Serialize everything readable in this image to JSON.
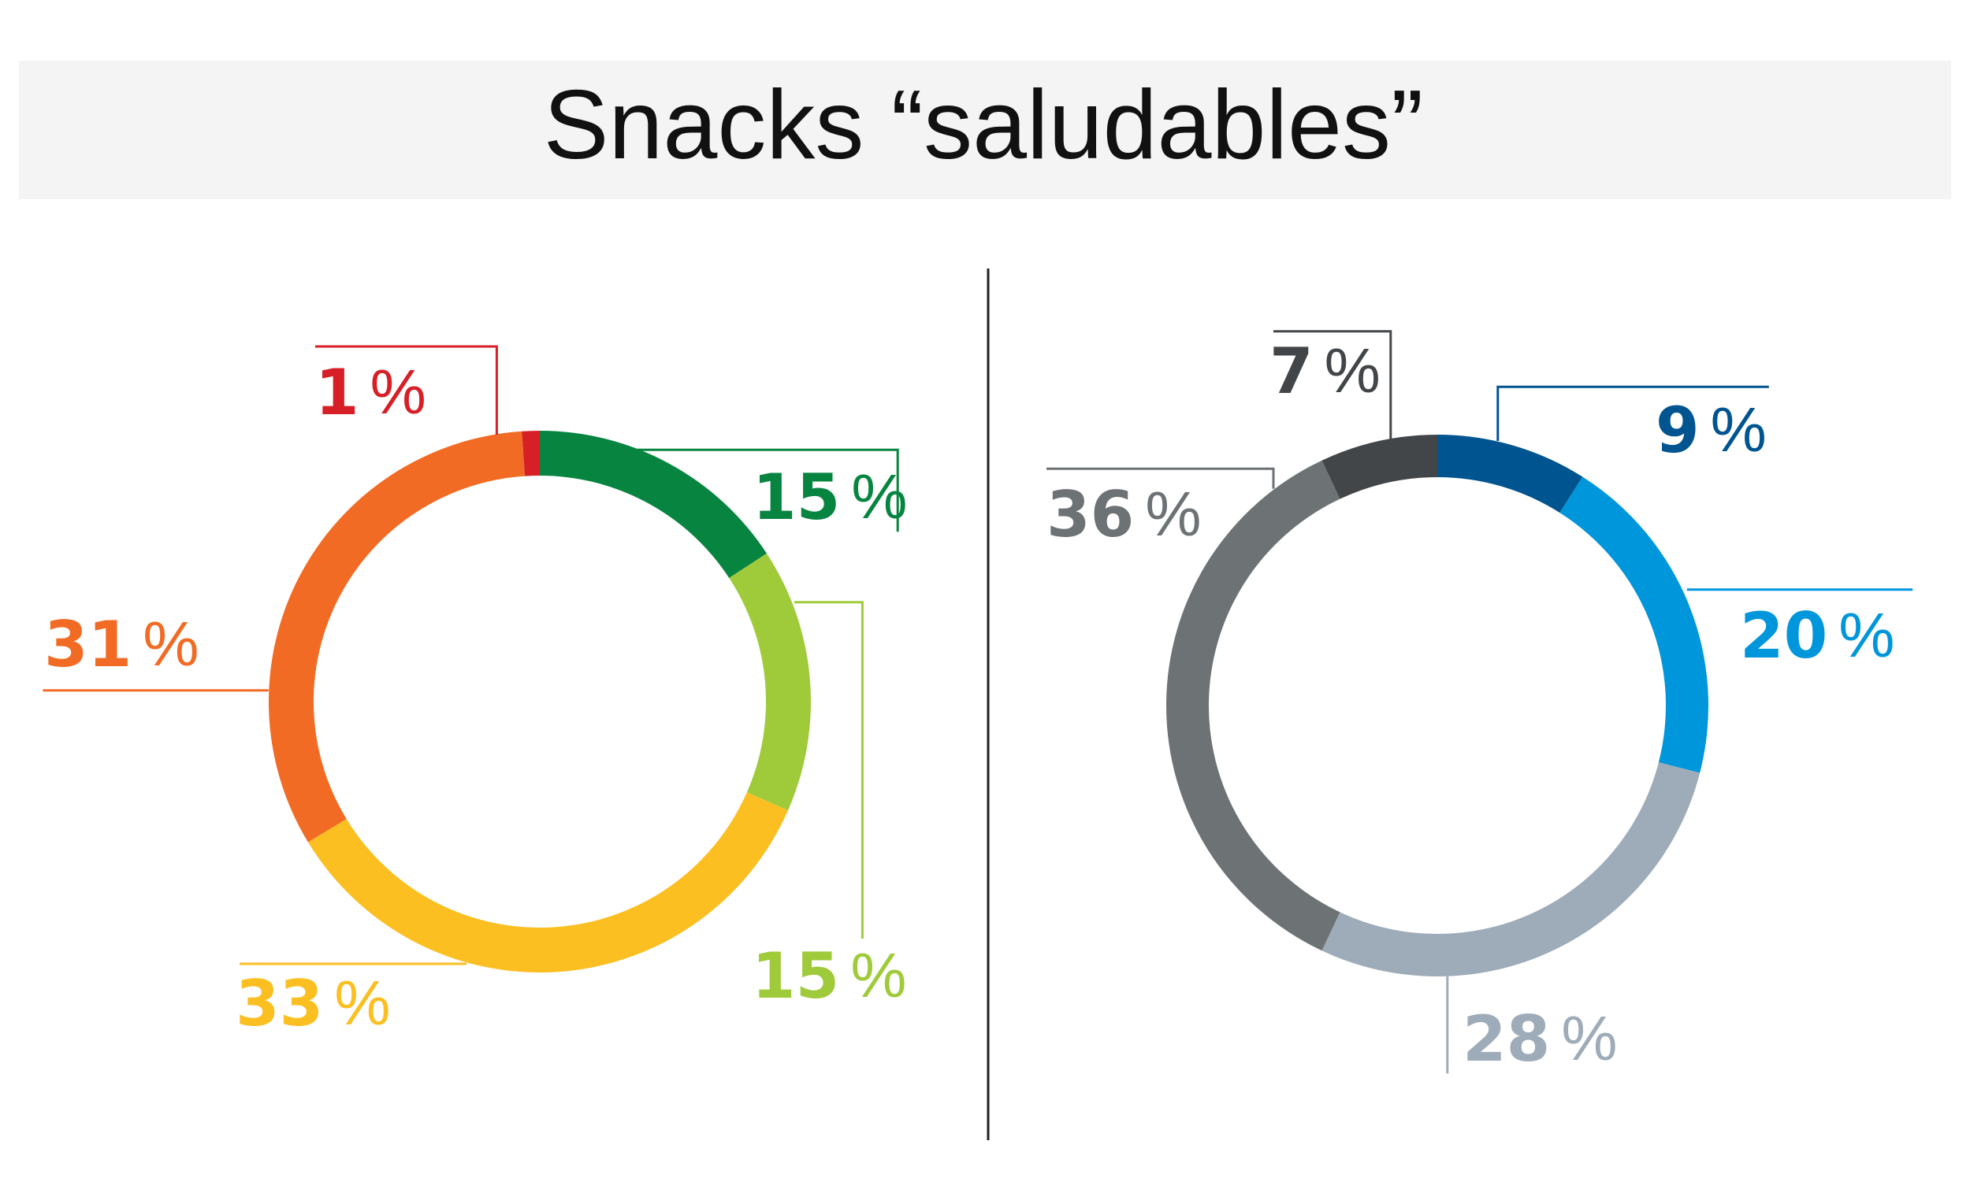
{
  "title": "Snacks “saludables”",
  "chart_data": [
    {
      "type": "donut",
      "values": [
        15,
        15,
        33,
        31,
        1
      ],
      "value_labels": [
        "15%",
        "15%",
        "33%",
        "31%",
        "1%"
      ],
      "colors": [
        "#078540",
        "#9fcb3b",
        "#fcbf22",
        "#f26b24",
        "#d71f27"
      ]
    },
    {
      "type": "donut",
      "values": [
        9,
        20,
        28,
        36,
        7
      ],
      "value_labels": [
        "9%",
        "20%",
        "28%",
        "36%",
        "7%"
      ],
      "colors": [
        "#00548f",
        "#0096db",
        "#9eacb9",
        "#6d7275",
        "#434648"
      ]
    }
  ]
}
